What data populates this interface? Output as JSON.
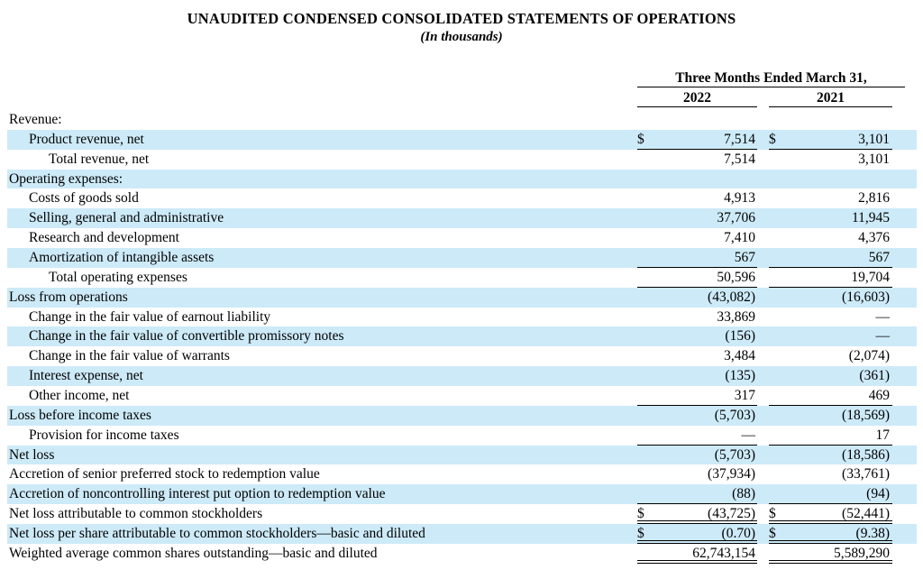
{
  "title": "UNAUDITED CONDENSED CONSOLIDATED STATEMENTS OF OPERATIONS",
  "subtitle": "(In thousands)",
  "colors": {
    "row_shade": "#cdeaf8",
    "text": "#000000",
    "rule": "#000000"
  },
  "table": {
    "period_header": "Three Months Ended March 31,",
    "col_2022": "2022",
    "col_2021": "2021",
    "currency_symbol": "$",
    "rows": [
      {
        "label": "Revenue:",
        "indent": 0,
        "dollar": false,
        "v2022": "",
        "v2021": "",
        "shaded": false,
        "border_bottom": "none"
      },
      {
        "label": "Product revenue, net",
        "indent": 1,
        "dollar": true,
        "v2022": "7,514",
        "v2021": "3,101",
        "shaded": true,
        "border_bottom": "single"
      },
      {
        "label": "Total revenue, net",
        "indent": 2,
        "dollar": false,
        "v2022": "7,514",
        "v2021": "3,101",
        "shaded": false,
        "border_bottom": "none"
      },
      {
        "label": "Operating expenses:",
        "indent": 0,
        "dollar": false,
        "v2022": "",
        "v2021": "",
        "shaded": true,
        "border_bottom": "none"
      },
      {
        "label": "Costs of goods sold",
        "indent": 1,
        "dollar": false,
        "v2022": "4,913",
        "v2021": "2,816",
        "shaded": false,
        "border_bottom": "none"
      },
      {
        "label": "Selling, general and administrative",
        "indent": 1,
        "dollar": false,
        "v2022": "37,706",
        "v2021": "11,945",
        "shaded": true,
        "border_bottom": "none"
      },
      {
        "label": "Research and development",
        "indent": 1,
        "dollar": false,
        "v2022": "7,410",
        "v2021": "4,376",
        "shaded": false,
        "border_bottom": "none"
      },
      {
        "label": "Amortization of intangible assets",
        "indent": 1,
        "dollar": false,
        "v2022": "567",
        "v2021": "567",
        "shaded": true,
        "border_bottom": "single"
      },
      {
        "label": "Total operating expenses",
        "indent": 2,
        "dollar": false,
        "v2022": "50,596",
        "v2021": "19,704",
        "shaded": false,
        "border_bottom": "single"
      },
      {
        "label": "Loss from operations",
        "indent": 0,
        "dollar": false,
        "v2022": "(43,082)",
        "v2021": "(16,603)",
        "shaded": true,
        "border_bottom": "none"
      },
      {
        "label": "Change in the fair value of earnout liability",
        "indent": 1,
        "dollar": false,
        "v2022": "33,869",
        "v2021": "—",
        "shaded": false,
        "border_bottom": "none"
      },
      {
        "label": "Change in the fair value of convertible promissory notes",
        "indent": 1,
        "dollar": false,
        "v2022": "(156)",
        "v2021": "—",
        "shaded": true,
        "border_bottom": "none"
      },
      {
        "label": "Change in the fair value of warrants",
        "indent": 1,
        "dollar": false,
        "v2022": "3,484",
        "v2021": "(2,074)",
        "shaded": false,
        "border_bottom": "none"
      },
      {
        "label": "Interest expense, net",
        "indent": 1,
        "dollar": false,
        "v2022": "(135)",
        "v2021": "(361)",
        "shaded": true,
        "border_bottom": "none"
      },
      {
        "label": "Other income, net",
        "indent": 1,
        "dollar": false,
        "v2022": "317",
        "v2021": "469",
        "shaded": false,
        "border_bottom": "single"
      },
      {
        "label": "Loss before income taxes",
        "indent": 0,
        "dollar": false,
        "v2022": "(5,703)",
        "v2021": "(18,569)",
        "shaded": true,
        "border_bottom": "none"
      },
      {
        "label": "Provision for income taxes",
        "indent": 1,
        "dollar": false,
        "v2022": "—",
        "v2021": "17",
        "shaded": false,
        "border_bottom": "single"
      },
      {
        "label": "Net loss",
        "indent": 0,
        "dollar": false,
        "v2022": "(5,703)",
        "v2021": "(18,586)",
        "shaded": true,
        "border_bottom": "none"
      },
      {
        "label": "Accretion of senior preferred stock to redemption value",
        "indent": 0,
        "dollar": false,
        "v2022": "(37,934)",
        "v2021": "(33,761)",
        "shaded": false,
        "border_bottom": "none"
      },
      {
        "label": "Accretion of noncontrolling interest put option to redemption value",
        "indent": 0,
        "dollar": false,
        "v2022": "(88)",
        "v2021": "(94)",
        "shaded": true,
        "border_bottom": "single"
      },
      {
        "label": "Net loss attributable to common stockholders",
        "indent": 0,
        "dollar": true,
        "v2022": "(43,725)",
        "v2021": "(52,441)",
        "shaded": false,
        "border_bottom": "double"
      },
      {
        "label": "Net loss per share attributable to common stockholders—basic and diluted",
        "indent": 0,
        "dollar": true,
        "v2022": "(0.70)",
        "v2021": "(9.38)",
        "shaded": true,
        "border_bottom": "double"
      },
      {
        "label": "Weighted average common shares outstanding—basic and diluted",
        "indent": 0,
        "dollar": false,
        "v2022": "62,743,154",
        "v2021": "5,589,290",
        "shaded": false,
        "border_bottom": "double"
      }
    ]
  }
}
